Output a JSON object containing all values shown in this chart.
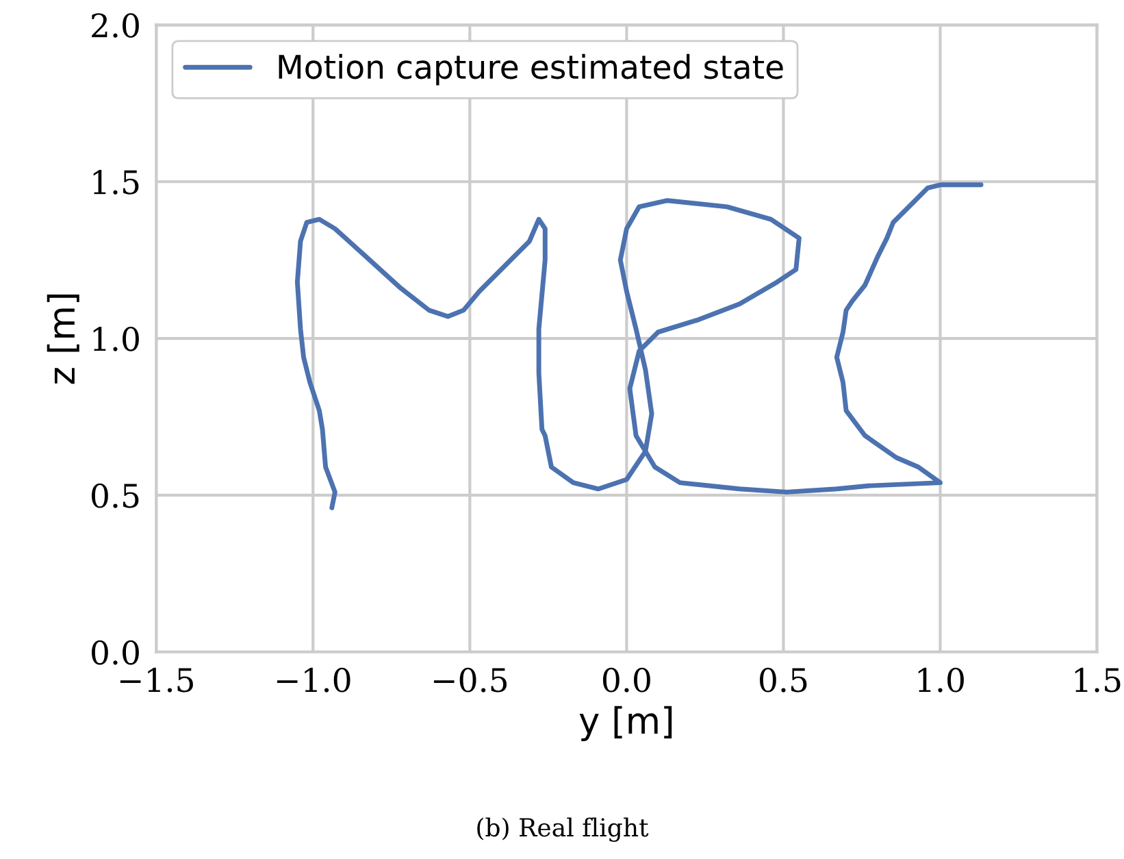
{
  "chart_data": {
    "type": "line",
    "xlabel": "y [m]",
    "ylabel": "z [m]",
    "annotations": [
      "(b) Real flight"
    ],
    "xlim": [
      -1.5,
      1.5
    ],
    "xticks": [
      {
        "value": -1.5,
        "label": "−1.5"
      },
      {
        "value": -1.0,
        "label": "−1.0"
      },
      {
        "value": -0.5,
        "label": "−0.5"
      },
      {
        "value": 0.0,
        "label": "0.0"
      },
      {
        "value": 0.5,
        "label": "0.5"
      },
      {
        "value": 1.0,
        "label": "1.0"
      },
      {
        "value": 1.5,
        "label": "1.5"
      }
    ],
    "ylim": [
      0,
      2
    ],
    "yticks": [
      {
        "value": 0,
        "label": "0.0"
      },
      {
        "value": 0.5,
        "label": "0.5"
      },
      {
        "value": 1.0,
        "label": "1.0"
      },
      {
        "value": 1.5,
        "label": "1.5"
      },
      {
        "value": 2.0,
        "label": "2.0"
      }
    ],
    "grid": true,
    "legend": "top left",
    "marker": "none",
    "line_style": "solid",
    "series": [
      {
        "name": "Motion capture estimated state",
        "color": "#4c72b0",
        "x": [
          -0.94,
          -0.93,
          -0.96,
          -0.97,
          -0.98,
          -1.01,
          -1.03,
          -1.04,
          -1.05,
          -1.04,
          -1.02,
          -0.98,
          -0.93,
          -0.83,
          -0.72,
          -0.63,
          -0.57,
          -0.52,
          -0.47,
          -0.38,
          -0.31,
          -0.28,
          -0.26,
          -0.26,
          -0.28,
          -0.28,
          -0.27,
          -0.26,
          -0.24,
          -0.17,
          -0.09,
          0.0,
          0.06,
          0.08,
          0.06,
          0.03,
          0.0,
          -0.02,
          0.0,
          0.04,
          0.13,
          0.32,
          0.46,
          0.55,
          0.54,
          0.48,
          0.36,
          0.23,
          0.1,
          0.04,
          0.01,
          0.03,
          0.09,
          0.17,
          0.36,
          0.51,
          0.67,
          0.77,
          1.0,
          0.93,
          0.86,
          0.76,
          0.7,
          0.69,
          0.67,
          0.69,
          0.7,
          0.72,
          0.76,
          0.8,
          0.83,
          0.85,
          0.92,
          0.96,
          1.0,
          1.13
        ],
        "values": [
          0.46,
          0.51,
          0.59,
          0.71,
          0.77,
          0.86,
          0.94,
          1.03,
          1.18,
          1.31,
          1.37,
          1.38,
          1.35,
          1.26,
          1.16,
          1.09,
          1.07,
          1.09,
          1.15,
          1.24,
          1.31,
          1.38,
          1.35,
          1.25,
          1.03,
          0.89,
          0.71,
          0.69,
          0.59,
          0.54,
          0.52,
          0.55,
          0.64,
          0.76,
          0.9,
          1.03,
          1.15,
          1.25,
          1.35,
          1.42,
          1.44,
          1.42,
          1.38,
          1.32,
          1.22,
          1.18,
          1.11,
          1.06,
          1.02,
          0.96,
          0.84,
          0.69,
          0.59,
          0.54,
          0.52,
          0.51,
          0.52,
          0.53,
          0.54,
          0.59,
          0.62,
          0.69,
          0.77,
          0.86,
          0.94,
          1.02,
          1.09,
          1.12,
          1.17,
          1.26,
          1.32,
          1.37,
          1.44,
          1.48,
          1.49,
          1.49
        ]
      }
    ]
  }
}
